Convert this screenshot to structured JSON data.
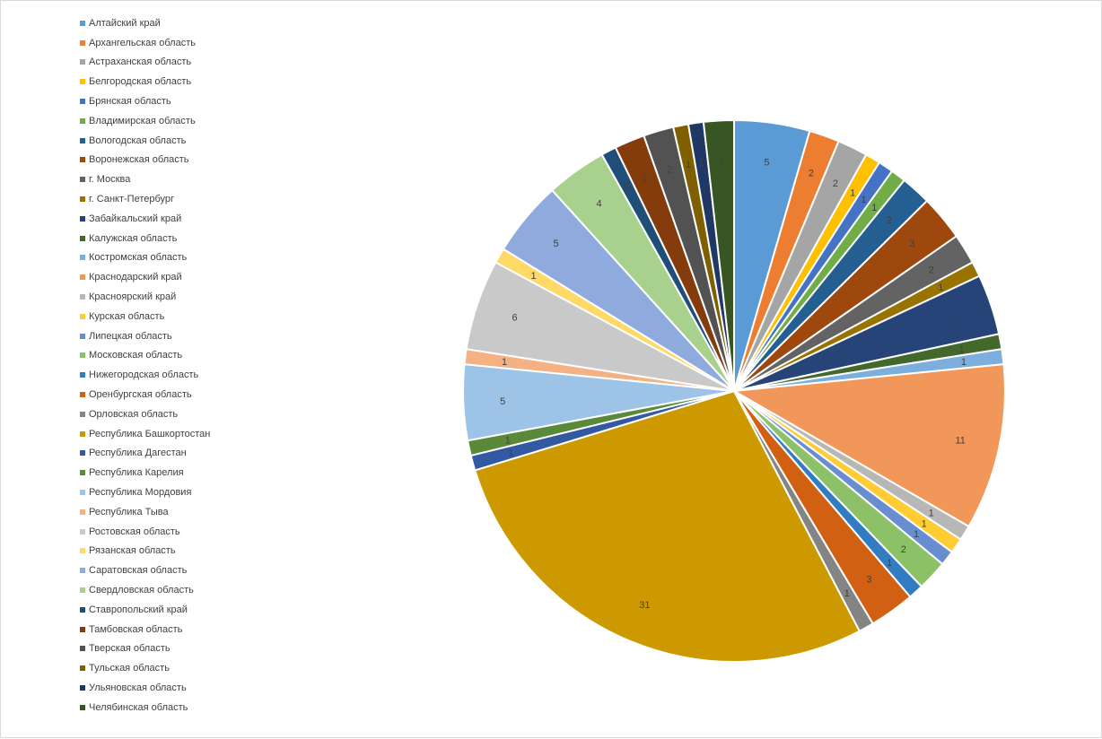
{
  "chart_data": {
    "type": "pie",
    "title": "",
    "legend_position": "left",
    "categories": [
      "Алтайский край",
      "Архангельская область",
      "Астраханская область",
      "Белгородская область",
      "Брянская область",
      "Владимирская область",
      "Вологодская область",
      "Воронежская область",
      "г. Москва",
      "г. Санкт-Петербург",
      "Забайкальский край",
      "Калужская область",
      "Костромская область",
      "Краснодарский край",
      "Красноярский край",
      "Курская область",
      "Липецкая область",
      "Московская область",
      "Нижегородская область",
      "Оренбургская область",
      "Орловская область",
      "Республика Башкортостан",
      "Республика Дагестан",
      "Республика Карелия",
      "Республика Мордовия",
      "Республика Тыва",
      "Ростовская область",
      "Рязанская область",
      "Саратовская область",
      "Свердловская область",
      "Ставропольский край",
      "Тамбовская область",
      "Тверская область",
      "Тульская область",
      "Ульяновская область",
      "Челябинская область"
    ],
    "values": [
      5,
      2,
      2,
      1,
      1,
      1,
      2,
      3,
      2,
      1,
      4,
      1,
      1,
      11,
      1,
      1,
      1,
      2,
      1,
      3,
      1,
      31,
      1,
      1,
      5,
      1,
      6,
      1,
      5,
      4,
      1,
      2,
      2,
      1,
      1,
      2
    ],
    "colors": [
      "#5b9bd5",
      "#ed7d31",
      "#a5a5a5",
      "#ffc000",
      "#4472c4",
      "#70ad47",
      "#255e91",
      "#9e480e",
      "#636363",
      "#997300",
      "#264478",
      "#43682b",
      "#7cafdd",
      "#f1975a",
      "#b7b7b7",
      "#ffcd33",
      "#698ed0",
      "#8cc168",
      "#327dc2",
      "#d26012",
      "#848484",
      "#cc9a00",
      "#335aa1",
      "#5a8a39",
      "#9dc3e6",
      "#f4b183",
      "#c9c9c9",
      "#ffd966",
      "#8faadc",
      "#a9d18e",
      "#1f4e79",
      "#843c0c",
      "#525252",
      "#7f6000",
      "#203864",
      "#375623"
    ]
  }
}
